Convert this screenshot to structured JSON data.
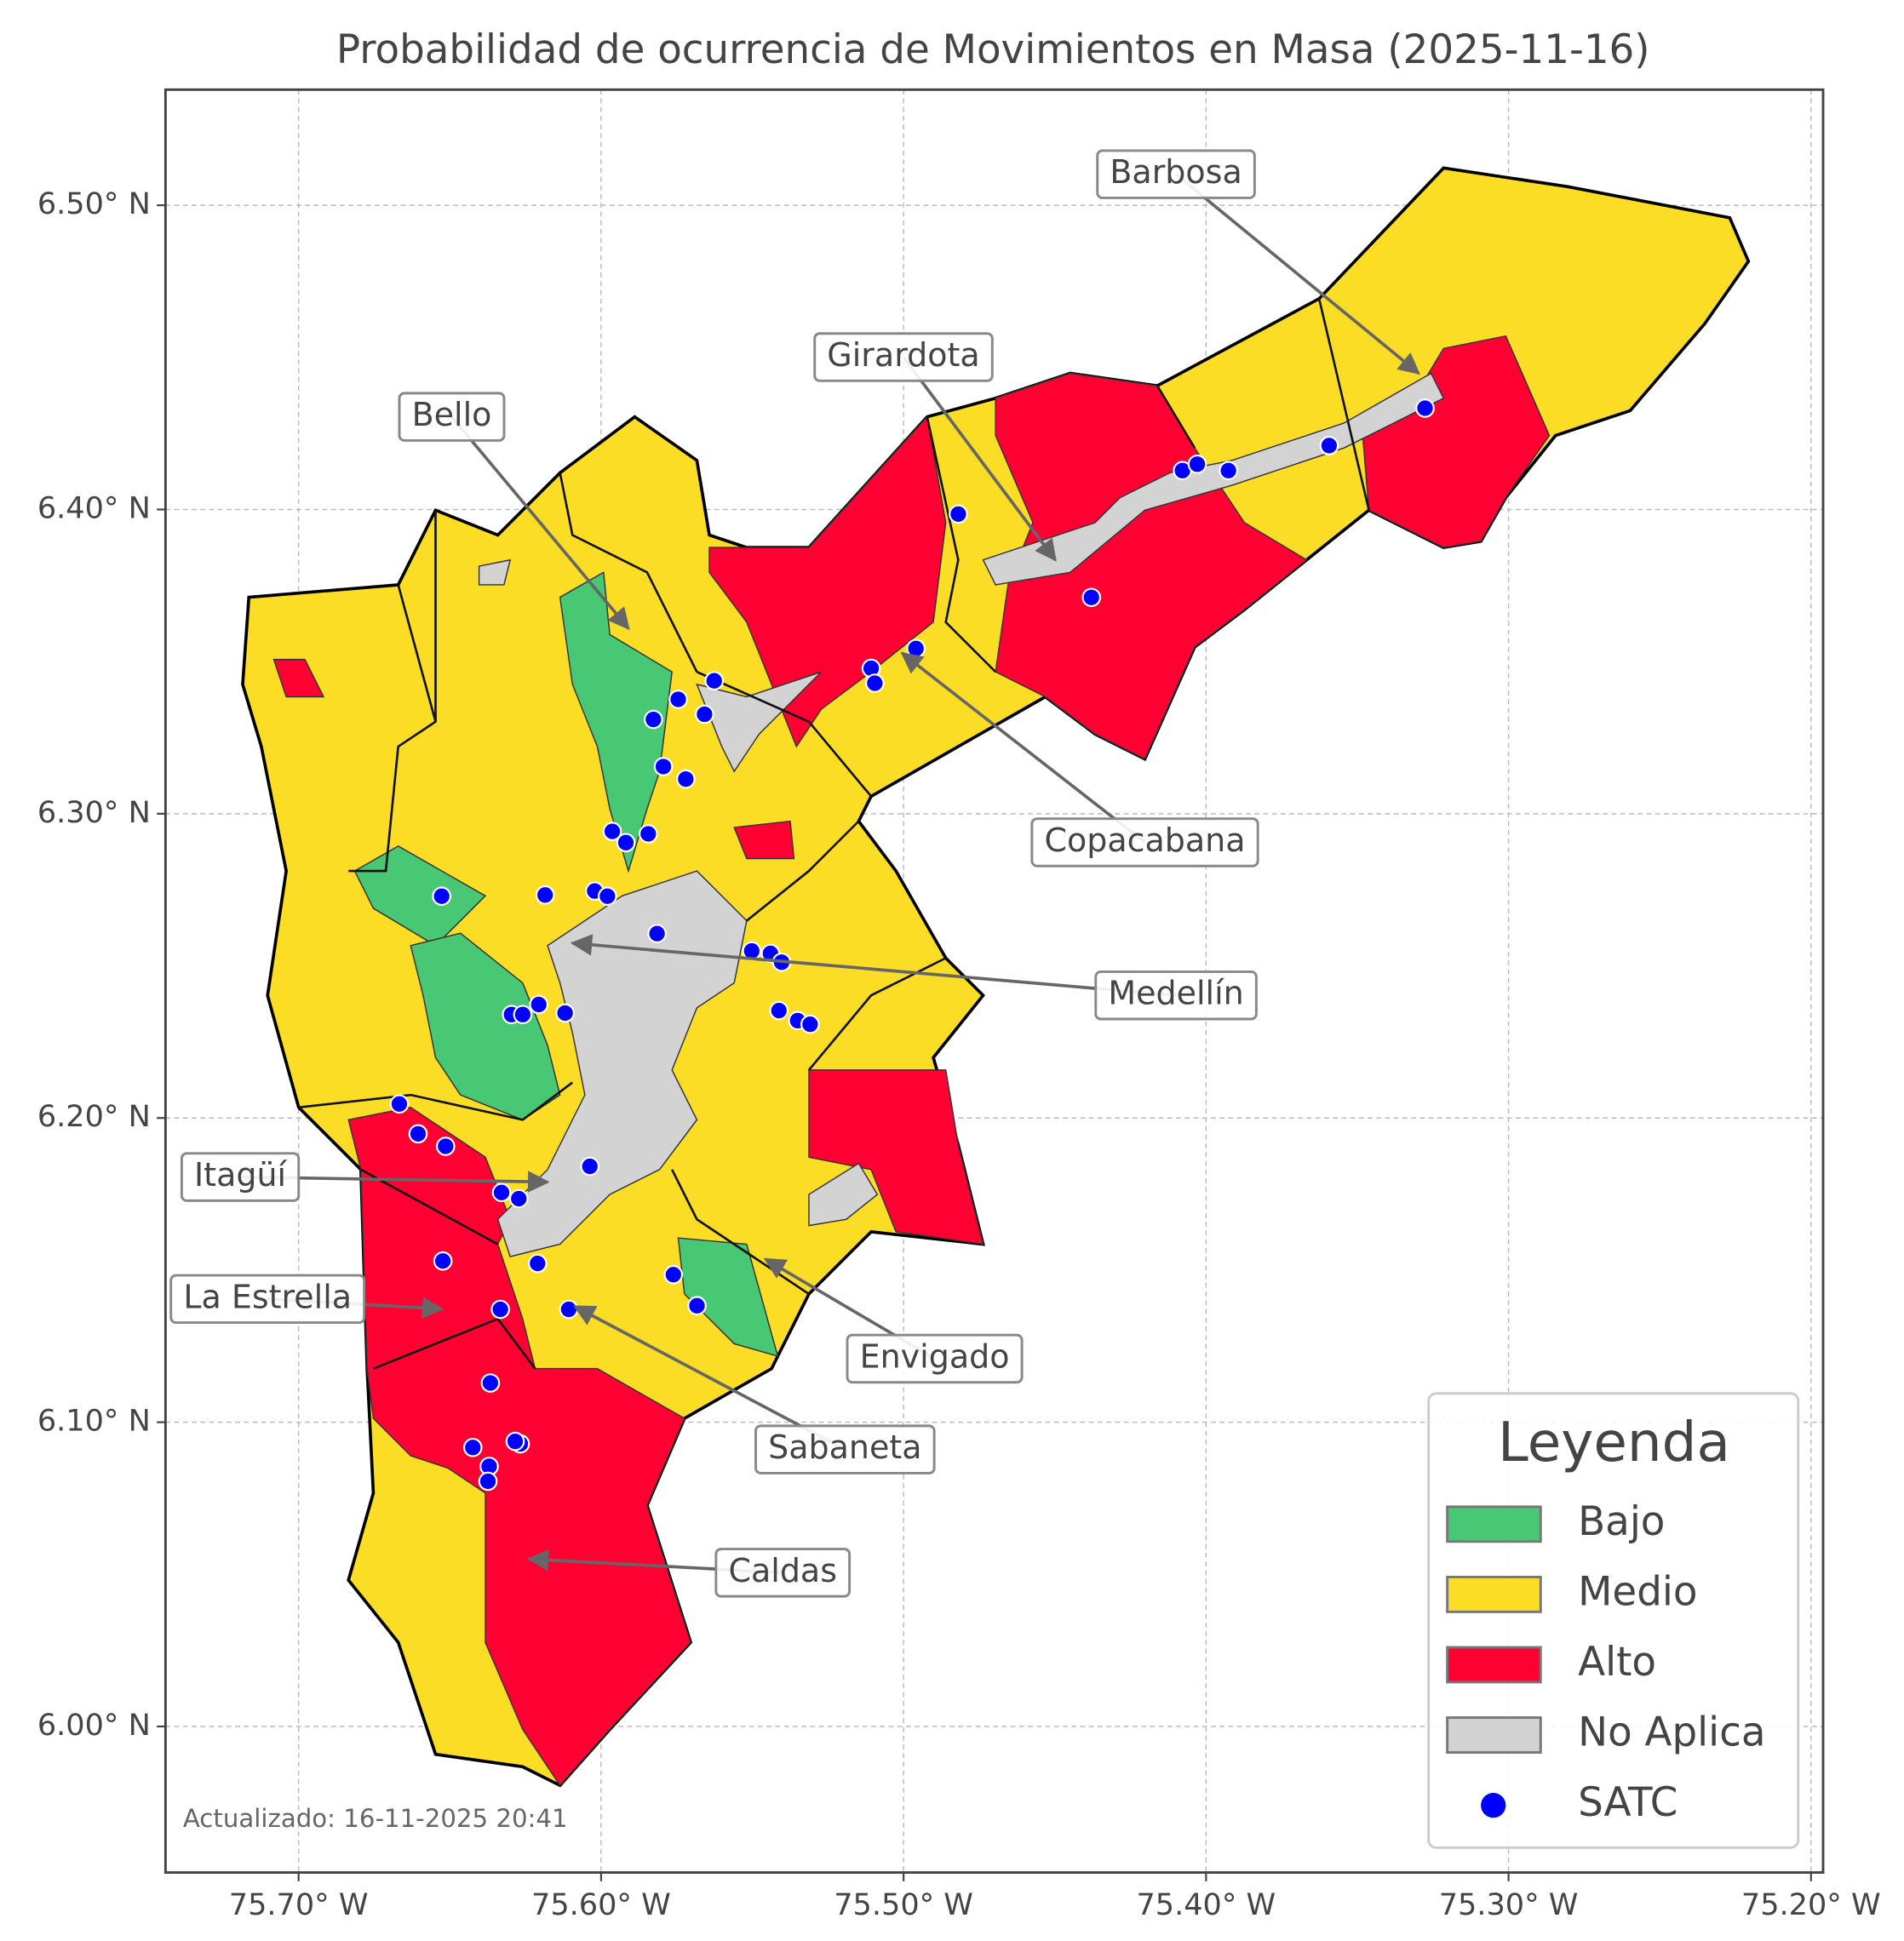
{
  "map": {
    "title": "Probabilidad de ocurrencia de Movimientos en Masa (2025-11-16)",
    "xlim": [
      -75.744,
      -75.196
    ],
    "ylim": [
      5.952,
      6.538
    ],
    "xticks": [
      {
        "value": -75.7,
        "label": "75.70° W"
      },
      {
        "value": -75.6,
        "label": "75.60° W"
      },
      {
        "value": -75.5,
        "label": "75.50° W"
      },
      {
        "value": -75.4,
        "label": "75.40° W"
      },
      {
        "value": -75.3,
        "label": "75.30° W"
      },
      {
        "value": -75.2,
        "label": "75.20° W"
      }
    ],
    "yticks": [
      {
        "value": 6.0,
        "label": "6.00° N"
      },
      {
        "value": 6.1,
        "label": "6.10° N"
      },
      {
        "value": 6.2,
        "label": "6.20° N"
      },
      {
        "value": 6.3,
        "label": "6.30° N"
      },
      {
        "value": 6.4,
        "label": "6.40° N"
      },
      {
        "value": 6.5,
        "label": "6.50° N"
      }
    ],
    "grid": true,
    "municipalities": [
      "Barbosa",
      "Girardota",
      "Bello",
      "Copacabana",
      "Medellín",
      "Itagüí",
      "La Estrella",
      "Envigado",
      "Sabaneta",
      "Caldas"
    ],
    "legend": {
      "title": "Leyenda",
      "items": [
        {
          "label": "Bajo",
          "color": "#48c774"
        },
        {
          "label": "Medio",
          "color": "#fbdd25"
        },
        {
          "label": "Alto",
          "color": "#ff0033"
        },
        {
          "label": "No Aplica",
          "color": "#d3d3d3"
        },
        {
          "label": "SATC",
          "color": "#0000ff"
        }
      ]
    },
    "stations": [
      {
        "lon": -75.3276,
        "lat": 6.4333
      },
      {
        "lon": -75.3593,
        "lat": 6.421
      },
      {
        "lon": -75.4078,
        "lat": 6.4128
      },
      {
        "lon": -75.4029,
        "lat": 6.4149
      },
      {
        "lon": -75.3926,
        "lat": 6.4128
      },
      {
        "lon": -75.4819,
        "lat": 6.3985
      },
      {
        "lon": -75.4379,
        "lat": 6.3711
      },
      {
        "lon": -75.4959,
        "lat": 6.3543
      },
      {
        "lon": -75.5107,
        "lat": 6.3478
      },
      {
        "lon": -75.5095,
        "lat": 6.3429
      },
      {
        "lon": -75.5626,
        "lat": 6.3437
      },
      {
        "lon": -75.5745,
        "lat": 6.3376
      },
      {
        "lon": -75.5658,
        "lat": 6.3327
      },
      {
        "lon": -75.5827,
        "lat": 6.331
      },
      {
        "lon": -75.5794,
        "lat": 6.3155
      },
      {
        "lon": -75.572,
        "lat": 6.3114
      },
      {
        "lon": -75.5963,
        "lat": 6.2942
      },
      {
        "lon": -75.5918,
        "lat": 6.2905
      },
      {
        "lon": -75.5844,
        "lat": 6.2934
      },
      {
        "lon": -75.6185,
        "lat": 6.2733
      },
      {
        "lon": -75.6021,
        "lat": 6.2746
      },
      {
        "lon": -75.5979,
        "lat": 6.2729
      },
      {
        "lon": -75.5815,
        "lat": 6.2606
      },
      {
        "lon": -75.6527,
        "lat": 6.2729
      },
      {
        "lon": -75.5502,
        "lat": 6.2549
      },
      {
        "lon": -75.544,
        "lat": 6.2541
      },
      {
        "lon": -75.5403,
        "lat": 6.2512
      },
      {
        "lon": -75.6206,
        "lat": 6.2373
      },
      {
        "lon": -75.6296,
        "lat": 6.234
      },
      {
        "lon": -75.6259,
        "lat": 6.234
      },
      {
        "lon": -75.6119,
        "lat": 6.2345
      },
      {
        "lon": -75.5412,
        "lat": 6.2353
      },
      {
        "lon": -75.535,
        "lat": 6.232
      },
      {
        "lon": -75.5309,
        "lat": 6.2308
      },
      {
        "lon": -75.6037,
        "lat": 6.1841
      },
      {
        "lon": -75.6667,
        "lat": 6.2046
      },
      {
        "lon": -75.6605,
        "lat": 6.1948
      },
      {
        "lon": -75.6514,
        "lat": 6.1907
      },
      {
        "lon": -75.6329,
        "lat": 6.1755
      },
      {
        "lon": -75.6272,
        "lat": 6.1735
      },
      {
        "lon": -75.621,
        "lat": 6.1522
      },
      {
        "lon": -75.6523,
        "lat": 6.153
      },
      {
        "lon": -75.5761,
        "lat": 6.1485
      },
      {
        "lon": -75.5683,
        "lat": 6.1383
      },
      {
        "lon": -75.6333,
        "lat": 6.1371
      },
      {
        "lon": -75.6107,
        "lat": 6.1371
      },
      {
        "lon": -75.6366,
        "lat": 6.1129
      },
      {
        "lon": -75.6424,
        "lat": 6.0917
      },
      {
        "lon": -75.6267,
        "lat": 6.0929
      },
      {
        "lon": -75.6284,
        "lat": 6.0937
      },
      {
        "lon": -75.637,
        "lat": 6.0855
      },
      {
        "lon": -75.6374,
        "lat": 6.0806
      }
    ],
    "updated": "Actualizado: 16-11-2025 20:41"
  }
}
